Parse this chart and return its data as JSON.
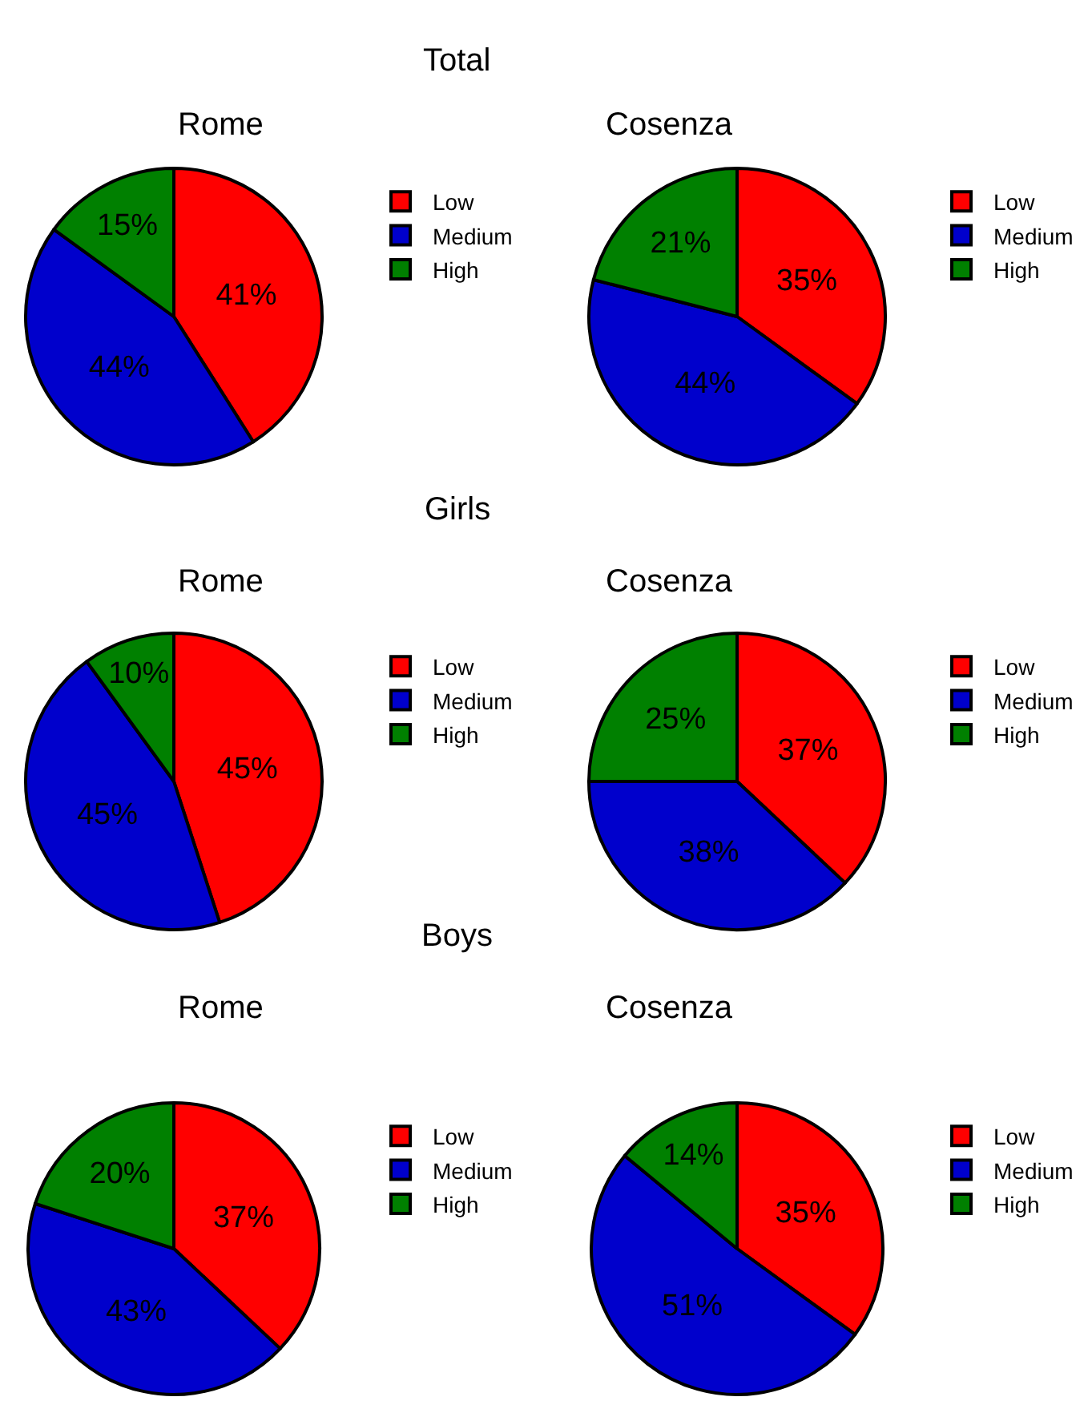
{
  "chart_data": [
    {
      "type": "pie",
      "title": "Rome",
      "annotations": [
        "Total"
      ],
      "categories": [
        "Low",
        "Medium",
        "High"
      ],
      "values": [
        41,
        44,
        15
      ],
      "value_labels": [
        "41%",
        "44%",
        "15%"
      ],
      "colors": [
        "#ff0000",
        "#0000cc",
        "#008000"
      ],
      "legend": "right"
    },
    {
      "type": "pie",
      "title": "Cosenza",
      "categories": [
        "Low",
        "Medium",
        "High"
      ],
      "values": [
        35,
        44,
        21
      ],
      "value_labels": [
        "35%",
        "44%",
        "21%"
      ],
      "colors": [
        "#ff0000",
        "#0000cc",
        "#008000"
      ],
      "legend": "right"
    },
    {
      "type": "pie",
      "title": "Rome",
      "annotations": [
        "Girls"
      ],
      "categories": [
        "Low",
        "Medium",
        "High"
      ],
      "values": [
        45,
        45,
        10
      ],
      "value_labels": [
        "45%",
        "45%",
        "10%"
      ],
      "colors": [
        "#ff0000",
        "#0000cc",
        "#008000"
      ],
      "legend": "right"
    },
    {
      "type": "pie",
      "title": "Cosenza",
      "categories": [
        "Low",
        "Medium",
        "High"
      ],
      "values": [
        37,
        38,
        25
      ],
      "value_labels": [
        "37%",
        "38%",
        "25%"
      ],
      "colors": [
        "#ff0000",
        "#0000cc",
        "#008000"
      ],
      "legend": "right"
    },
    {
      "type": "pie",
      "title": "Rome",
      "annotations": [
        "Boys"
      ],
      "categories": [
        "Low",
        "Medium",
        "High"
      ],
      "values": [
        37,
        43,
        20
      ],
      "value_labels": [
        "37%",
        "43%",
        "20%"
      ],
      "colors": [
        "#ff0000",
        "#0000cc",
        "#008000"
      ],
      "legend": "right"
    },
    {
      "type": "pie",
      "title": "Cosenza",
      "categories": [
        "Low",
        "Medium",
        "High"
      ],
      "values": [
        35,
        51,
        14
      ],
      "value_labels": [
        "35%",
        "51%",
        "14%"
      ],
      "colors": [
        "#ff0000",
        "#0000cc",
        "#008000"
      ],
      "legend": "right"
    }
  ]
}
